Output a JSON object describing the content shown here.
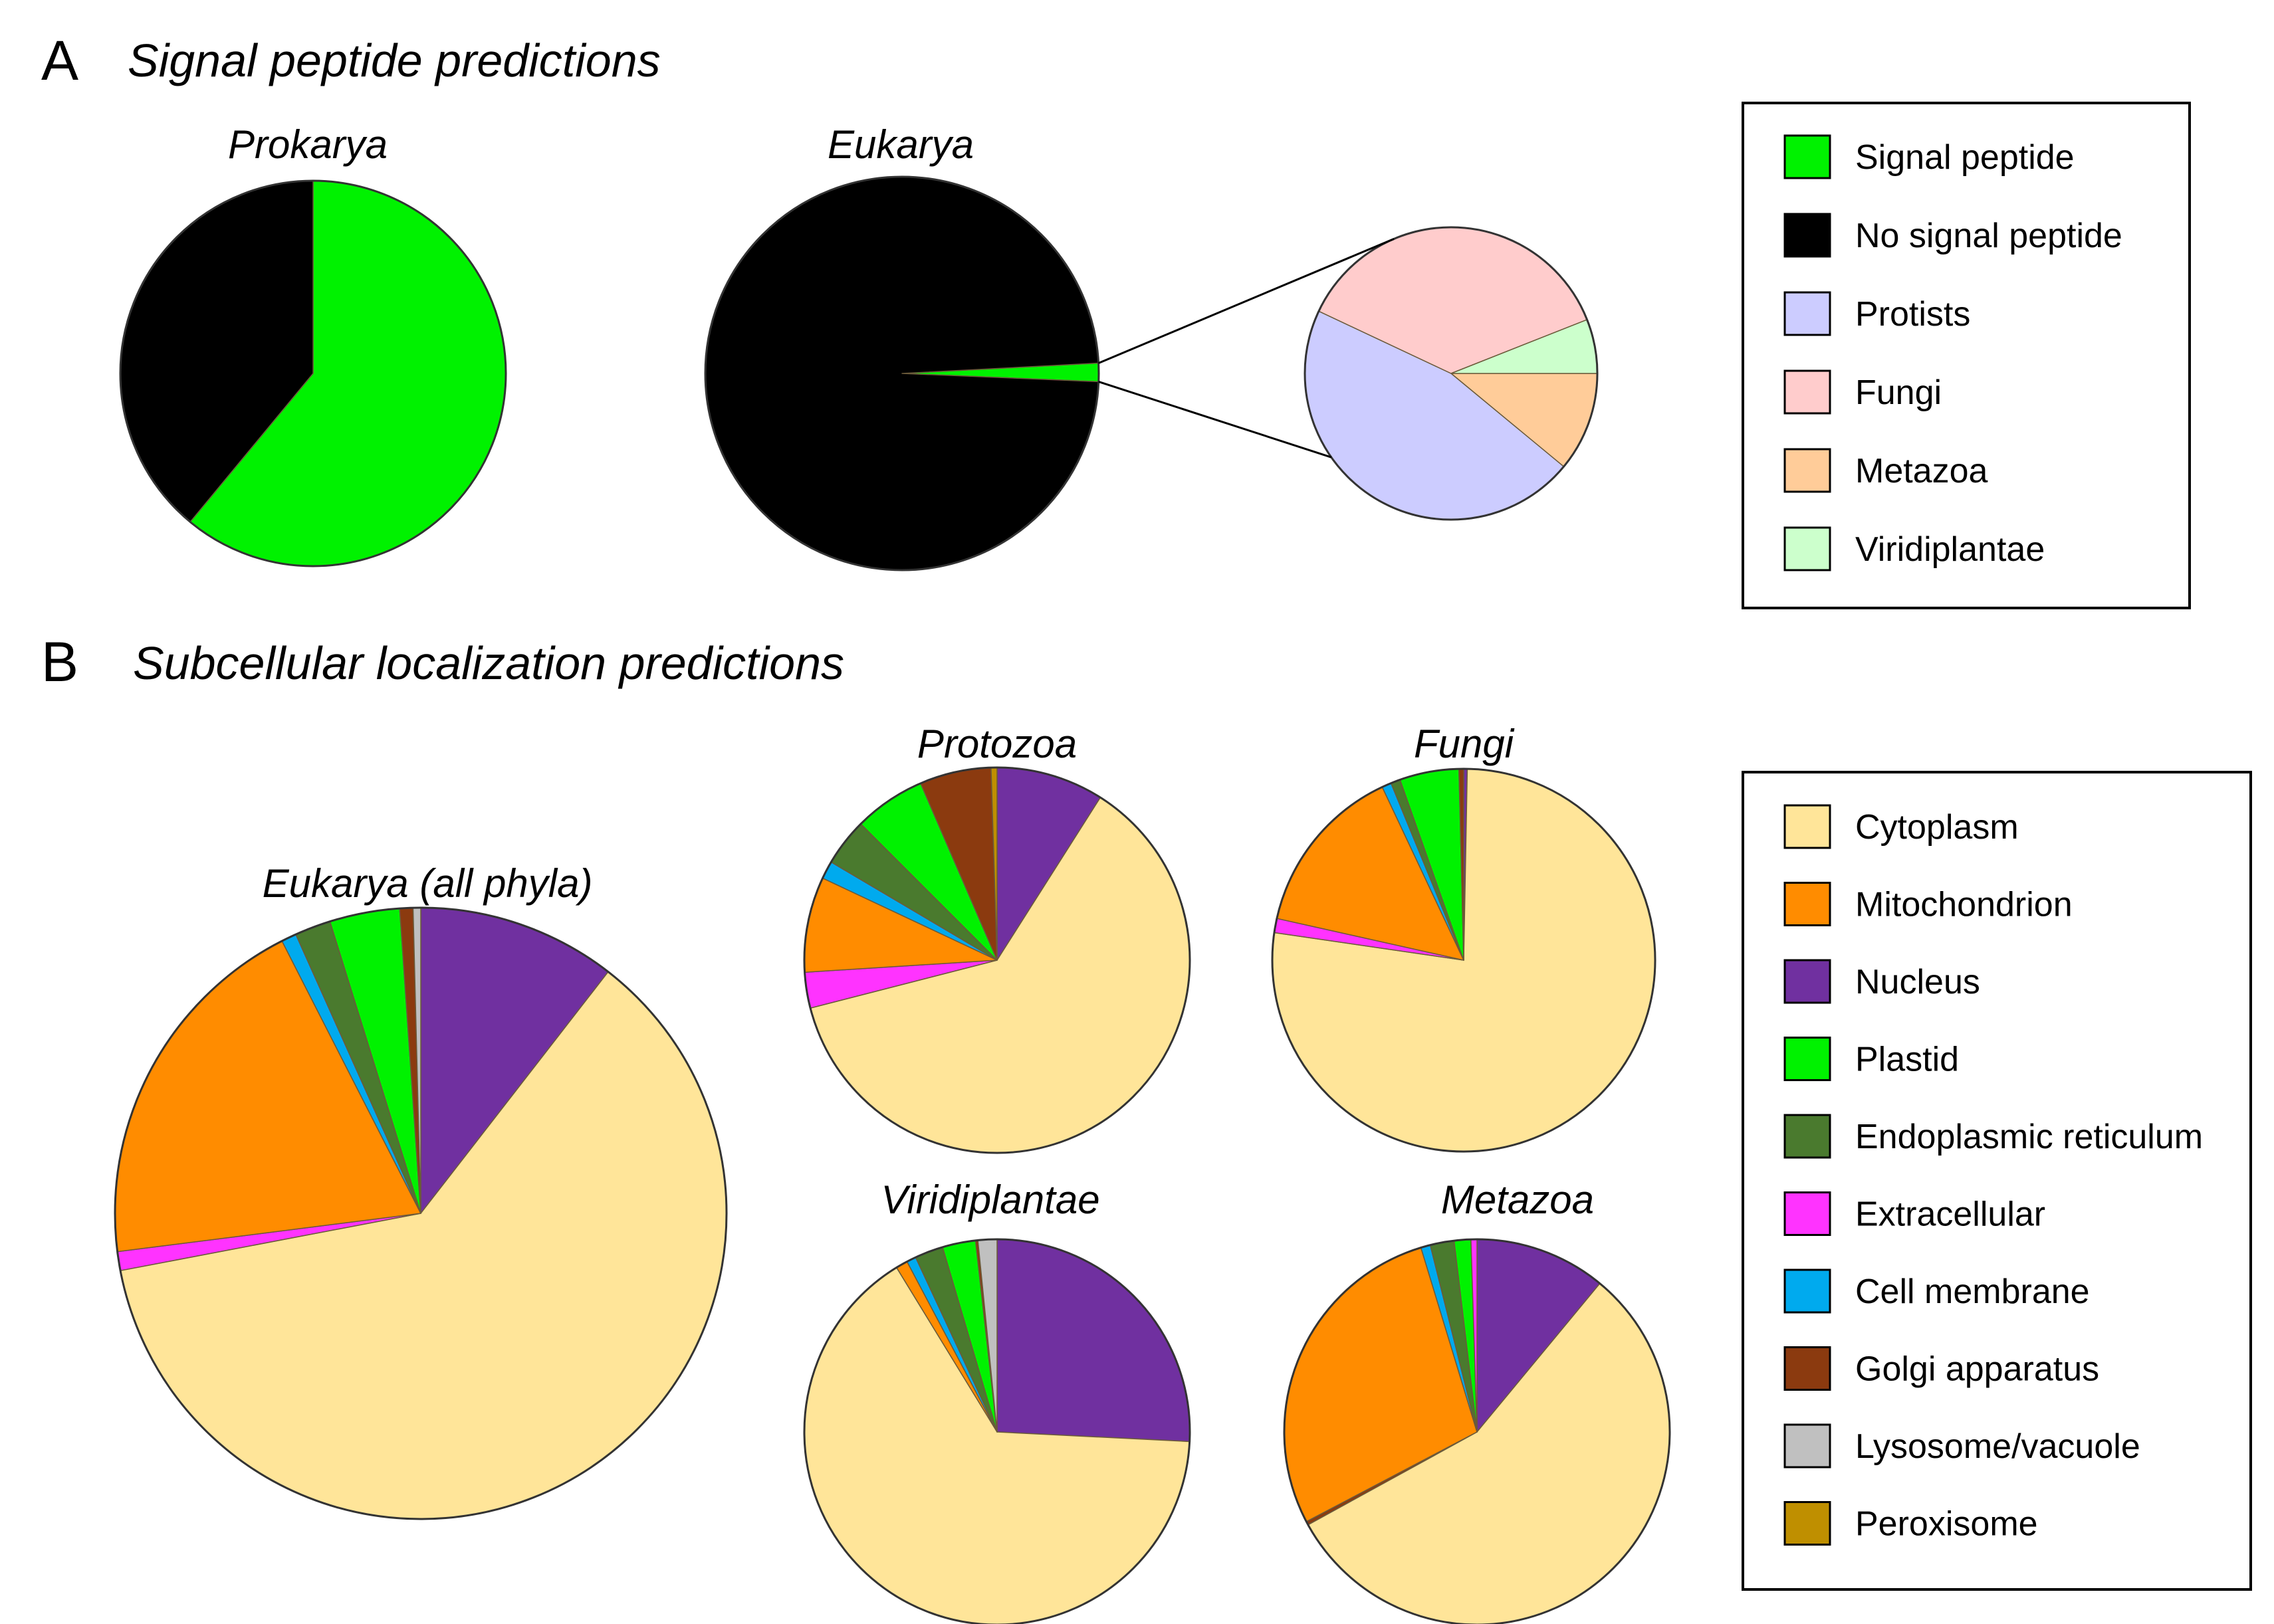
{
  "panel_a": {
    "letter": "A",
    "title": "Signal peptide predictions"
  },
  "panel_b": {
    "letter": "B",
    "title": "Subcellular localization predictions"
  },
  "legend_a": [
    {
      "label": "Signal peptide",
      "color": "#00f200"
    },
    {
      "label": "No signal peptide",
      "color": "#000000"
    },
    {
      "label": "Protists",
      "color": "#ccccff"
    },
    {
      "label": "Fungi",
      "color": "#ffcccc"
    },
    {
      "label": "Metazoa",
      "color": "#ffcc99"
    },
    {
      "label": "Viridiplantae",
      "color": "#ccffcc"
    }
  ],
  "legend_b": [
    {
      "label": "Cytoplasm",
      "color": "#ffe599"
    },
    {
      "label": "Mitochondrion",
      "color": "#ff8c00"
    },
    {
      "label": "Nucleus",
      "color": "#7030a0"
    },
    {
      "label": "Plastid",
      "color": "#00f200"
    },
    {
      "label": "Endoplasmic reticulum",
      "color": "#4a7a2e"
    },
    {
      "label": "Extracellular",
      "color": "#ff33ff"
    },
    {
      "label": "Cell membrane",
      "color": "#00aaee"
    },
    {
      "label": "Golgi apparatus",
      "color": "#8b3a0f"
    },
    {
      "label": "Lysosome/vacuole",
      "color": "#c0c0c0"
    },
    {
      "label": "Peroxisome",
      "color": "#bf8f00"
    }
  ],
  "chart_data": [
    {
      "type": "pie",
      "title": "Prokarya",
      "slices": [
        {
          "label": "Signal peptide",
          "value": 61,
          "color": "#00f200"
        },
        {
          "label": "No signal peptide",
          "value": 39,
          "color": "#000000"
        }
      ]
    },
    {
      "type": "pie",
      "title": "Eukarya",
      "slices": [
        {
          "label": "Signal peptide",
          "value": 1.5,
          "color": "#00f200"
        },
        {
          "label": "No signal peptide",
          "value": 98.5,
          "color": "#000000"
        }
      ]
    },
    {
      "type": "pie",
      "title": "",
      "slices": [
        {
          "label": "Metazoa",
          "value": 11,
          "color": "#ffcc99"
        },
        {
          "label": "Protists",
          "value": 46,
          "color": "#ccccff"
        },
        {
          "label": "Fungi",
          "value": 37,
          "color": "#ffcccc"
        },
        {
          "label": "Viridiplantae",
          "value": 6,
          "color": "#ccffcc"
        }
      ]
    },
    {
      "type": "pie",
      "title": "Eukarya (all phyla)",
      "slices": [
        {
          "label": "Nucleus",
          "value": 10.5,
          "color": "#7030a0"
        },
        {
          "label": "Cytoplasm",
          "value": 61.5,
          "color": "#ffe599"
        },
        {
          "label": "Extracellular",
          "value": 1.0,
          "color": "#ff33ff"
        },
        {
          "label": "Mitochondrion",
          "value": 19.5,
          "color": "#ff8c00"
        },
        {
          "label": "Cell membrane",
          "value": 0.8,
          "color": "#00aaee"
        },
        {
          "label": "Endoplasmic reticulum",
          "value": 1.9,
          "color": "#4a7a2e"
        },
        {
          "label": "Plastid",
          "value": 3.7,
          "color": "#00f200"
        },
        {
          "label": "Golgi apparatus",
          "value": 0.7,
          "color": "#8b3a0f"
        },
        {
          "label": "Lysosome/vacuole",
          "value": 0.4,
          "color": "#c0c0c0"
        }
      ]
    },
    {
      "type": "pie",
      "title": "Protozoa",
      "slices": [
        {
          "label": "Nucleus",
          "value": 9,
          "color": "#7030a0"
        },
        {
          "label": "Cytoplasm",
          "value": 62,
          "color": "#ffe599"
        },
        {
          "label": "Extracellular",
          "value": 3,
          "color": "#ff33ff"
        },
        {
          "label": "Mitochondrion",
          "value": 8,
          "color": "#ff8c00"
        },
        {
          "label": "Cell membrane",
          "value": 1.5,
          "color": "#00aaee"
        },
        {
          "label": "Endoplasmic reticulum",
          "value": 4,
          "color": "#4a7a2e"
        },
        {
          "label": "Plastid",
          "value": 6,
          "color": "#00f200"
        },
        {
          "label": "Golgi apparatus",
          "value": 6,
          "color": "#8b3a0f"
        },
        {
          "label": "Peroxisome",
          "value": 0.5,
          "color": "#bf8f00"
        }
      ]
    },
    {
      "type": "pie",
      "title": "Fungi",
      "slices": [
        {
          "label": "Nucleus",
          "value": 0.3,
          "color": "#7030a0"
        },
        {
          "label": "Cytoplasm",
          "value": 77,
          "color": "#ffe599"
        },
        {
          "label": "Extracellular",
          "value": 1.2,
          "color": "#ff33ff"
        },
        {
          "label": "Mitochondrion",
          "value": 14.5,
          "color": "#ff8c00"
        },
        {
          "label": "Cell membrane",
          "value": 0.8,
          "color": "#00aaee"
        },
        {
          "label": "Endoplasmic reticulum",
          "value": 0.8,
          "color": "#4a7a2e"
        },
        {
          "label": "Plastid",
          "value": 5,
          "color": "#00f200"
        },
        {
          "label": "Golgi apparatus",
          "value": 0.4,
          "color": "#8b3a0f"
        }
      ]
    },
    {
      "type": "pie",
      "title": "Viridiplantae",
      "slices": [
        {
          "label": "Nucleus",
          "value": 26,
          "color": "#7030a0"
        },
        {
          "label": "Cytoplasm",
          "value": 66,
          "color": "#ffe599"
        },
        {
          "label": "Mitochondrion",
          "value": 1.0,
          "color": "#ff8c00"
        },
        {
          "label": "Cell membrane",
          "value": 0.8,
          "color": "#00aaee"
        },
        {
          "label": "Endoplasmic reticulum",
          "value": 2.4,
          "color": "#4a7a2e"
        },
        {
          "label": "Plastid",
          "value": 2.8,
          "color": "#00f200"
        },
        {
          "label": "Golgi apparatus",
          "value": 0.2,
          "color": "#8b3a0f"
        },
        {
          "label": "Lysosome/vacuole",
          "value": 1.6,
          "color": "#c0c0c0"
        }
      ]
    },
    {
      "type": "pie",
      "title": "Metazoa",
      "slices": [
        {
          "label": "Nucleus",
          "value": 11,
          "color": "#7030a0"
        },
        {
          "label": "Cytoplasm",
          "value": 56,
          "color": "#ffe599"
        },
        {
          "label": "Golgi apparatus",
          "value": 0.3,
          "color": "#8b3a0f"
        },
        {
          "label": "Mitochondrion",
          "value": 28,
          "color": "#ff8c00"
        },
        {
          "label": "Cell membrane",
          "value": 0.8,
          "color": "#00aaee"
        },
        {
          "label": "Endoplasmic reticulum",
          "value": 2.0,
          "color": "#4a7a2e"
        },
        {
          "label": "Plastid",
          "value": 1.4,
          "color": "#00f200"
        },
        {
          "label": "Extracellular",
          "value": 0.5,
          "color": "#ff33ff"
        }
      ]
    }
  ]
}
